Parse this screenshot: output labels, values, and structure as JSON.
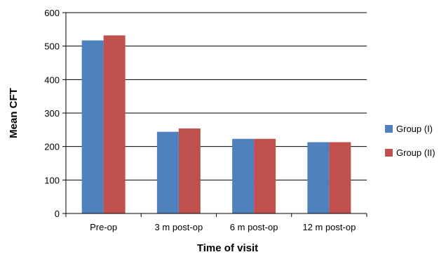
{
  "chart_data": {
    "type": "bar",
    "categories": [
      "Pre-op",
      "3 m post-op",
      "6 m post-op",
      "12 m post-op"
    ],
    "series": [
      {
        "name": "Group (I)",
        "values": [
          517,
          244,
          223,
          213
        ],
        "color": "#4f81bd"
      },
      {
        "name": "Group (II)",
        "values": [
          532,
          254,
          223,
          213
        ],
        "color": "#c0504d"
      }
    ],
    "title": "",
    "xlabel": "Time of visit",
    "ylabel": "Mean CFT",
    "ylim": [
      0,
      600
    ],
    "yticks": [
      0,
      100,
      200,
      300,
      400,
      500,
      600
    ],
    "grid": true,
    "legend": "right"
  }
}
